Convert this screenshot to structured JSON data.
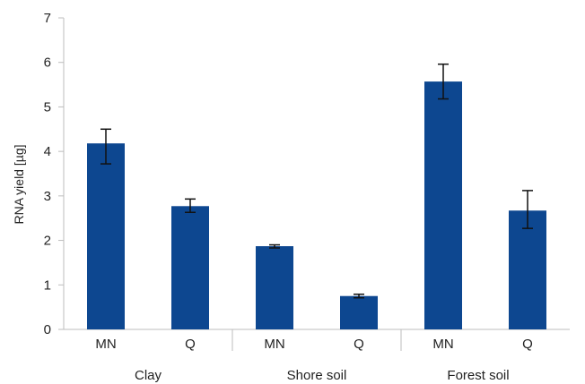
{
  "chart_data": {
    "type": "bar",
    "title": "",
    "xlabel": "",
    "ylabel": "RNA yield [µg]",
    "ylim": [
      0,
      7
    ],
    "yticks": [
      0,
      1,
      2,
      3,
      4,
      5,
      6,
      7
    ],
    "grid": false,
    "legend": "none",
    "bar_color": "#0d4790",
    "axis_color": "#bdbdbd",
    "groups": [
      "Clay",
      "Shore soil",
      "Forest soil"
    ],
    "categories": [
      "MN",
      "Q",
      "MN",
      "Q",
      "MN",
      "Q"
    ],
    "values": [
      4.18,
      2.77,
      1.87,
      0.75,
      5.57,
      2.67
    ],
    "error_low": [
      3.72,
      2.63,
      1.83,
      0.71,
      5.18,
      2.27
    ],
    "error_high": [
      4.5,
      2.93,
      1.9,
      0.79,
      5.96,
      3.12
    ]
  }
}
